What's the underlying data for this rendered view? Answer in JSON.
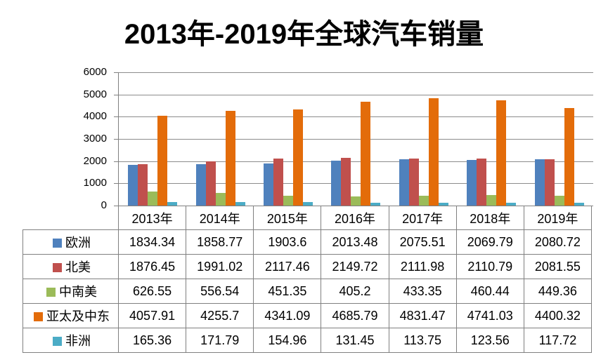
{
  "title": "2013年-2019年全球汽车销量",
  "colors": {
    "series_europe": "#4F81BD",
    "series_north_america": "#C0504D",
    "series_central_south_america": "#9BBB59",
    "series_apac_middle_east": "#E36C0A",
    "series_africa": "#4BACC6",
    "gridline": "#8C8C8C",
    "axis": "#808080",
    "table_border": "#808080",
    "text": "#000000",
    "background": "#FFFFFF"
  },
  "chart_data": {
    "type": "bar",
    "title": "2013年-2019年全球汽车销量",
    "categories": [
      "2013年",
      "2014年",
      "2015年",
      "2016年",
      "2017年",
      "2018年",
      "2019年"
    ],
    "series": [
      {
        "name": "欧洲",
        "color": "#4F81BD",
        "values": [
          1834.34,
          1858.77,
          1903.6,
          2013.48,
          2075.51,
          2069.79,
          2080.72
        ]
      },
      {
        "name": "北美",
        "color": "#C0504D",
        "values": [
          1876.45,
          1991.02,
          2117.46,
          2149.72,
          2111.98,
          2110.79,
          2081.55
        ]
      },
      {
        "name": "中南美",
        "color": "#9BBB59",
        "values": [
          626.55,
          556.54,
          451.35,
          405.2,
          433.35,
          460.44,
          449.36
        ]
      },
      {
        "name": "亚太及中东",
        "color": "#E36C0A",
        "values": [
          4057.91,
          4255.7,
          4341.09,
          4685.79,
          4831.47,
          4741.03,
          4400.32
        ]
      },
      {
        "name": "非洲",
        "color": "#4BACC6",
        "values": [
          165.36,
          171.79,
          154.96,
          131.45,
          113.75,
          123.56,
          117.72
        ]
      }
    ],
    "xlabel": "",
    "ylabel": "",
    "ylim": [
      0,
      6000
    ],
    "yticks": [
      6000,
      5000,
      4000,
      3000,
      2000,
      1000,
      0
    ],
    "grid": true,
    "legend_position": "table-row-headers",
    "data_table_shown": true
  }
}
